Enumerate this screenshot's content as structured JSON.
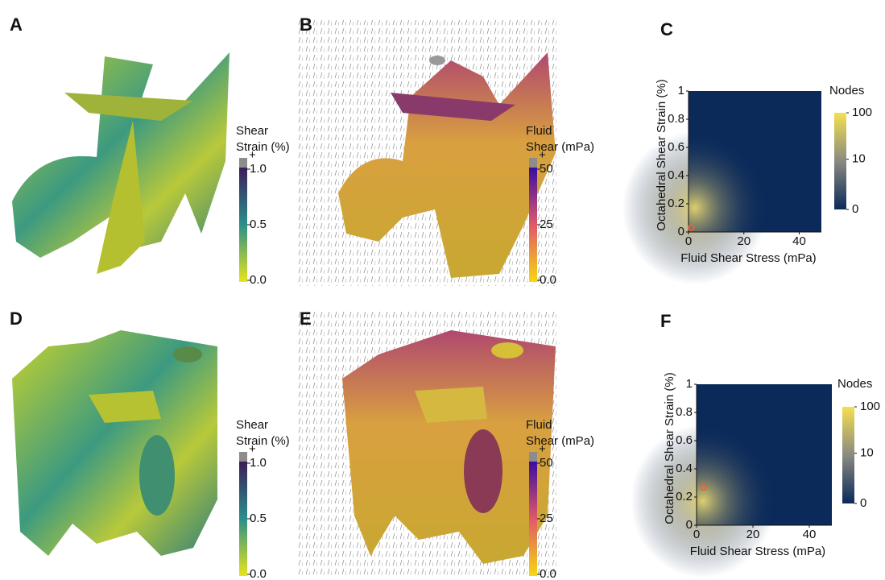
{
  "panels": [
    {
      "label": "A",
      "colorbar": {
        "title": [
          "Shear",
          "Strain (%)"
        ],
        "overflow": "+",
        "lim": [
          0,
          1
        ],
        "ticks": [
          {
            "value": 1,
            "label": "1.0"
          },
          {
            "value": 0.5,
            "label": "0.5"
          },
          {
            "value": 0,
            "label": "0.0"
          }
        ],
        "colors": [
          "#e8e41c",
          "#2a8f8a",
          "#3b1d5a"
        ]
      }
    },
    {
      "label": "B",
      "colorbar": {
        "title": [
          "Fluid",
          "Shear (mPa)"
        ],
        "overflow": "+",
        "lim": [
          0,
          50
        ],
        "ticks": [
          50,
          25,
          {
            "value": 0,
            "label": "0.0"
          }
        ],
        "colors": [
          "#f6d80f",
          "#e0586a",
          "#3a0ca3"
        ]
      }
    },
    {
      "label": "D",
      "colorbar": {
        "title": [
          "Shear",
          "Strain (%)"
        ],
        "overflow": "+",
        "lim": [
          0,
          1
        ],
        "ticks": [
          {
            "value": 1,
            "label": "1.0"
          },
          {
            "value": 0.5,
            "label": "0.5"
          },
          {
            "value": 0,
            "label": "0.0"
          }
        ],
        "colors": [
          "#e8e41c",
          "#2a8f8a",
          "#3b1d5a"
        ]
      }
    },
    {
      "label": "E",
      "colorbar": {
        "title": [
          "Fluid",
          "Shear (mPa)"
        ],
        "overflow": "+",
        "lim": [
          0,
          50
        ],
        "ticks": [
          50,
          25,
          {
            "value": 0,
            "label": "0.0"
          }
        ],
        "colors": [
          "#f6d80f",
          "#e0586a",
          "#3a0ca3"
        ]
      }
    }
  ],
  "chart_data": [
    {
      "type": "heatmap",
      "label": "C",
      "xlabel": "Fluid Shear Stress (mPa)",
      "ylabel": "Octahedral Shear Strain (%)",
      "xlim": [
        0,
        48
      ],
      "ylim": [
        0,
        1
      ],
      "xticks": [
        0,
        20,
        40
      ],
      "yticks": [
        0,
        0.2,
        0.4,
        0.6,
        0.8,
        1
      ],
      "background": "#0b2a5a",
      "colorbar": {
        "title": "Nodes",
        "scale": "symlog",
        "lim": [
          0,
          100
        ],
        "ticks": [
          100,
          10,
          0
        ],
        "colors": [
          "#0b2a5a",
          "#8a8a80",
          "#f5e050"
        ]
      },
      "marker": {
        "x": 1,
        "y": 0.03,
        "color": "#e8623a"
      }
    },
    {
      "type": "heatmap",
      "label": "F",
      "xlabel": "Fluid Shear Stress (mPa)",
      "ylabel": "Octahedral Shear Strain (%)",
      "xlim": [
        0,
        48
      ],
      "ylim": [
        0,
        1
      ],
      "xticks": [
        0,
        20,
        40
      ],
      "yticks": [
        0,
        0.2,
        0.4,
        0.6,
        0.8,
        1
      ],
      "background": "#0b2a5a",
      "colorbar": {
        "title": "Nodes",
        "scale": "symlog",
        "lim": [
          0,
          100
        ],
        "ticks": [
          100,
          10,
          0
        ],
        "colors": [
          "#0b2a5a",
          "#8a8a80",
          "#f5e050"
        ]
      },
      "marker": {
        "x": 2.5,
        "y": 0.27,
        "color": "#e8623a"
      }
    }
  ]
}
